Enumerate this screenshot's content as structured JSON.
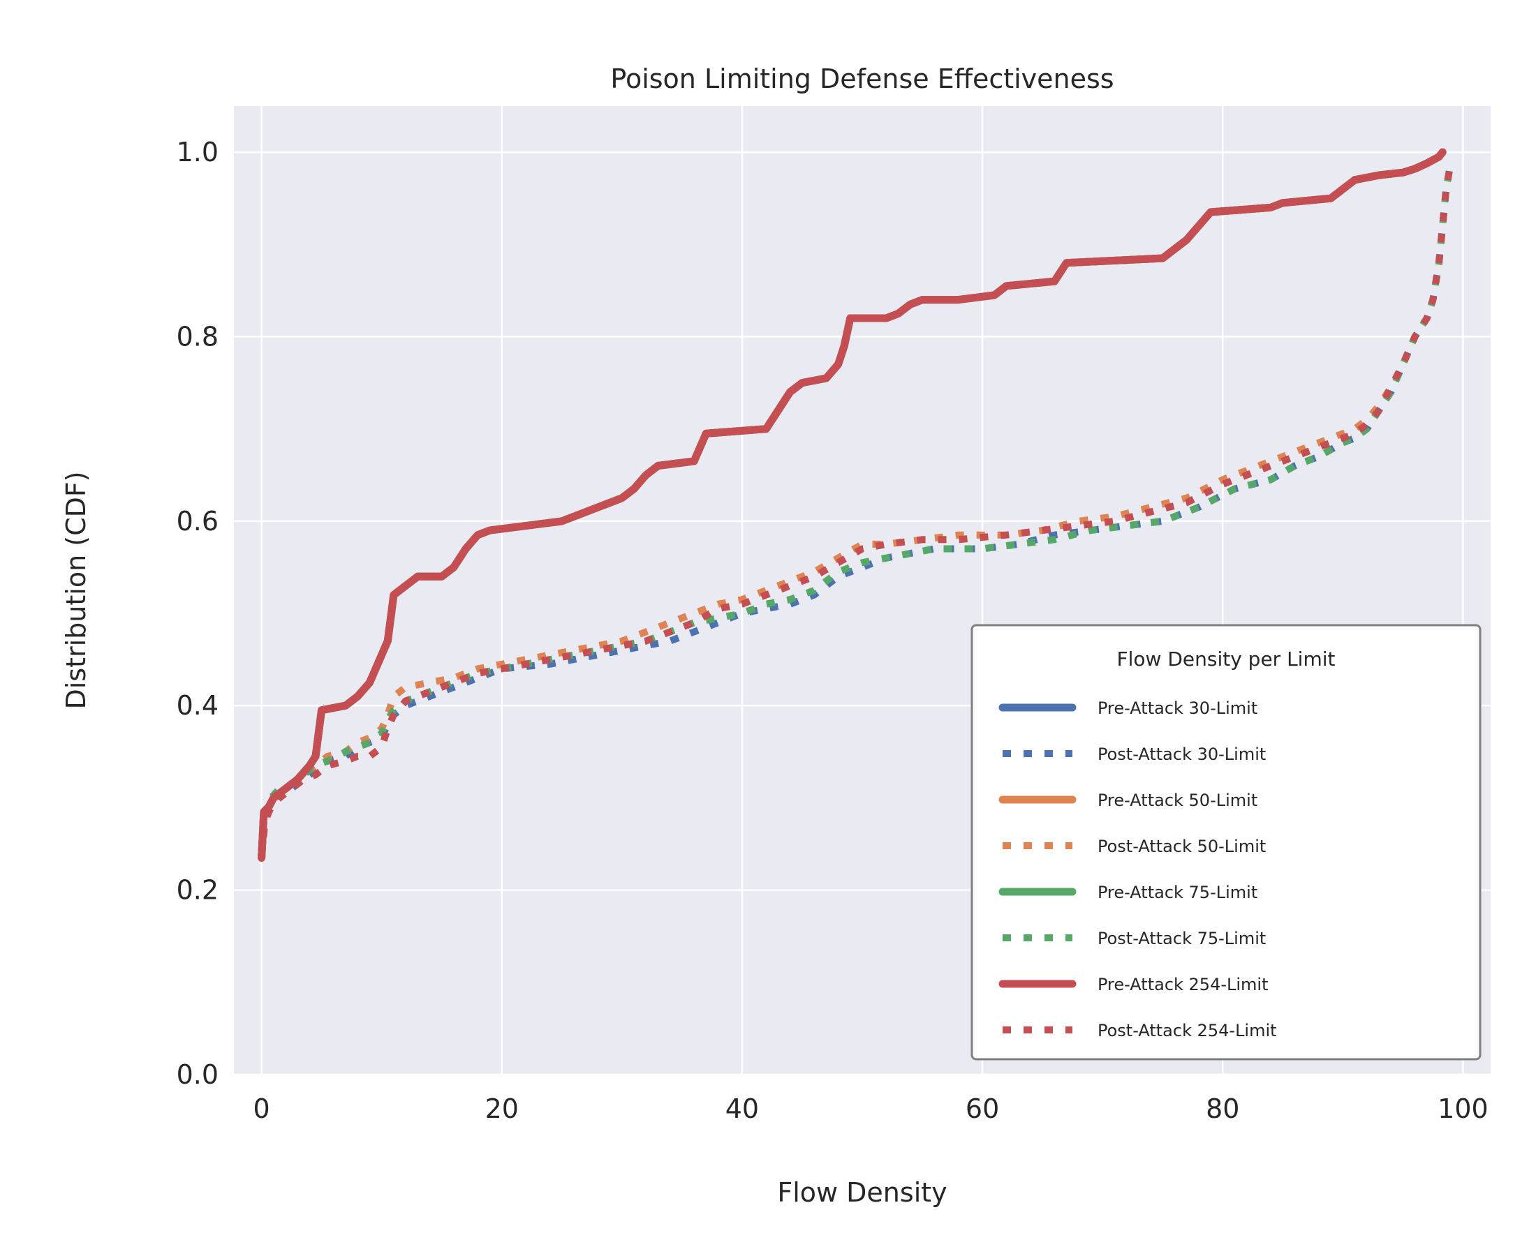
{
  "chart_data": {
    "type": "line",
    "title": "Poison Limiting Defense Effectiveness",
    "xlabel": "Flow Density",
    "ylabel": "Distribution (CDF)",
    "xlim": [
      -2.3,
      102.3
    ],
    "ylim": [
      0,
      1.05
    ],
    "xticks": [
      0,
      20,
      40,
      60,
      80,
      100
    ],
    "yticks": [
      0.0,
      0.2,
      0.4,
      0.6,
      0.8,
      1.0
    ],
    "xtick_labels": [
      "0",
      "20",
      "40",
      "60",
      "80",
      "100"
    ],
    "ytick_labels": [
      "0.0",
      "0.2",
      "0.4",
      "0.6",
      "0.8",
      "1.0"
    ],
    "grid": true,
    "legend": {
      "title": "Flow Density per Limit",
      "position": "lower-right"
    },
    "colors": {
      "blue": "#4c72b0",
      "orange": "#dd8452",
      "green": "#55a868",
      "red": "#c44e52",
      "plot_bg": "#eaeaf2",
      "grid": "#ffffff"
    },
    "series": [
      {
        "name": "Pre-Attack 30-Limit",
        "color": "#4c72b0",
        "style": "solid",
        "x": [
          0,
          0.2,
          0.6,
          1,
          2,
          3,
          4,
          4.5,
          5,
          7,
          8,
          9,
          10,
          10.5,
          11,
          12,
          13,
          15,
          16,
          17,
          18,
          19,
          25,
          27,
          30,
          31,
          32,
          33,
          36,
          37,
          42,
          43,
          44,
          45,
          47,
          48,
          48.5,
          49,
          52,
          53,
          54,
          55,
          58,
          61,
          62,
          66,
          67,
          75,
          76,
          77,
          78,
          79,
          84,
          85,
          89,
          90,
          91,
          93,
          95,
          96,
          97,
          98,
          98.3
        ],
        "y": [
          0.235,
          0.285,
          0.29,
          0.3,
          0.31,
          0.32,
          0.335,
          0.345,
          0.395,
          0.4,
          0.41,
          0.425,
          0.455,
          0.47,
          0.52,
          0.53,
          0.54,
          0.54,
          0.55,
          0.57,
          0.585,
          0.59,
          0.6,
          0.61,
          0.625,
          0.635,
          0.65,
          0.66,
          0.665,
          0.695,
          0.7,
          0.72,
          0.74,
          0.75,
          0.755,
          0.77,
          0.79,
          0.82,
          0.82,
          0.825,
          0.835,
          0.84,
          0.84,
          0.845,
          0.855,
          0.86,
          0.88,
          0.885,
          0.895,
          0.905,
          0.92,
          0.935,
          0.94,
          0.945,
          0.95,
          0.96,
          0.97,
          0.975,
          0.978,
          0.982,
          0.988,
          0.995,
          1.0
        ]
      },
      {
        "name": "Post-Attack 30-Limit",
        "color": "#4c72b0",
        "style": "dotted",
        "x": [
          0,
          0.3,
          0.8,
          1.5,
          2.5,
          3.5,
          4.5,
          5.5,
          7,
          8,
          9,
          10,
          10.5,
          11,
          12,
          14,
          16,
          18,
          20,
          24,
          26,
          28,
          30,
          32,
          34,
          36,
          38,
          40,
          42,
          44,
          46,
          48,
          50,
          52,
          54,
          56,
          60,
          63,
          66,
          69,
          72,
          75,
          78,
          81,
          84,
          86,
          88,
          90,
          91,
          92,
          93,
          94,
          95,
          96,
          97,
          97.5,
          98,
          98.3,
          98.6,
          99
        ],
        "y": [
          0.235,
          0.28,
          0.295,
          0.305,
          0.31,
          0.32,
          0.33,
          0.34,
          0.345,
          0.355,
          0.36,
          0.365,
          0.38,
          0.39,
          0.4,
          0.41,
          0.42,
          0.43,
          0.44,
          0.445,
          0.45,
          0.455,
          0.46,
          0.465,
          0.47,
          0.48,
          0.49,
          0.5,
          0.505,
          0.51,
          0.52,
          0.54,
          0.55,
          0.56,
          0.565,
          0.57,
          0.57,
          0.575,
          0.585,
          0.59,
          0.595,
          0.6,
          0.615,
          0.635,
          0.645,
          0.66,
          0.67,
          0.685,
          0.69,
          0.7,
          0.72,
          0.74,
          0.77,
          0.8,
          0.82,
          0.84,
          0.88,
          0.92,
          0.96,
          0.99
        ]
      },
      {
        "name": "Pre-Attack 50-Limit",
        "color": "#dd8452",
        "style": "solid",
        "x": [
          0,
          0.2,
          0.6,
          1,
          2,
          3,
          4,
          4.5,
          5,
          7,
          8,
          9,
          10,
          10.5,
          11,
          12,
          13,
          15,
          16,
          17,
          18,
          19,
          25,
          27,
          30,
          31,
          32,
          33,
          36,
          37,
          42,
          43,
          44,
          45,
          47,
          48,
          48.5,
          49,
          52,
          53,
          54,
          55,
          58,
          61,
          62,
          66,
          67,
          75,
          76,
          77,
          78,
          79,
          84,
          85,
          89,
          90,
          91,
          93,
          95,
          96,
          97,
          98,
          98.3
        ],
        "y": [
          0.235,
          0.285,
          0.29,
          0.3,
          0.31,
          0.32,
          0.335,
          0.345,
          0.395,
          0.4,
          0.41,
          0.425,
          0.455,
          0.47,
          0.52,
          0.53,
          0.54,
          0.54,
          0.55,
          0.57,
          0.585,
          0.59,
          0.6,
          0.61,
          0.625,
          0.635,
          0.65,
          0.66,
          0.665,
          0.695,
          0.7,
          0.72,
          0.74,
          0.75,
          0.755,
          0.77,
          0.79,
          0.82,
          0.82,
          0.825,
          0.835,
          0.84,
          0.84,
          0.845,
          0.855,
          0.86,
          0.88,
          0.885,
          0.895,
          0.905,
          0.92,
          0.935,
          0.94,
          0.945,
          0.95,
          0.96,
          0.97,
          0.975,
          0.978,
          0.982,
          0.988,
          0.995,
          1.0
        ]
      },
      {
        "name": "Post-Attack 50-Limit",
        "color": "#dd8452",
        "style": "dotted",
        "x": [
          0,
          0.3,
          0.8,
          1.5,
          2.5,
          3.5,
          4.5,
          5.5,
          7,
          8,
          9,
          10,
          10.5,
          11,
          12,
          14,
          16,
          18,
          20,
          22,
          24,
          26,
          28,
          30,
          32,
          34,
          36,
          38,
          40,
          42,
          44,
          46,
          48,
          50,
          52,
          55,
          58,
          62,
          65,
          68,
          71,
          74,
          77,
          80,
          83,
          85,
          87,
          89,
          91,
          92,
          93,
          94,
          95,
          96,
          97,
          97.5,
          98,
          98.3,
          98.6,
          99
        ],
        "y": [
          0.235,
          0.28,
          0.295,
          0.305,
          0.315,
          0.325,
          0.335,
          0.345,
          0.35,
          0.36,
          0.365,
          0.375,
          0.39,
          0.41,
          0.42,
          0.425,
          0.43,
          0.44,
          0.445,
          0.45,
          0.455,
          0.46,
          0.465,
          0.47,
          0.48,
          0.49,
          0.5,
          0.51,
          0.515,
          0.525,
          0.535,
          0.545,
          0.56,
          0.575,
          0.575,
          0.58,
          0.585,
          0.585,
          0.59,
          0.6,
          0.605,
          0.615,
          0.625,
          0.645,
          0.66,
          0.67,
          0.68,
          0.69,
          0.7,
          0.71,
          0.725,
          0.745,
          0.77,
          0.8,
          0.82,
          0.84,
          0.88,
          0.92,
          0.96,
          0.99
        ]
      },
      {
        "name": "Pre-Attack 75-Limit",
        "color": "#55a868",
        "style": "solid",
        "x": [
          0,
          0.2,
          0.6,
          1,
          2,
          3,
          4,
          4.5,
          5,
          7,
          8,
          9,
          10,
          10.5,
          11,
          12,
          13,
          15,
          16,
          17,
          18,
          19,
          25,
          27,
          30,
          31,
          32,
          33,
          36,
          37,
          42,
          43,
          44,
          45,
          47,
          48,
          48.5,
          49,
          52,
          53,
          54,
          55,
          58,
          61,
          62,
          66,
          67,
          75,
          76,
          77,
          78,
          79,
          84,
          85,
          89,
          90,
          91,
          93,
          95,
          96,
          97,
          98,
          98.3
        ],
        "y": [
          0.235,
          0.285,
          0.29,
          0.3,
          0.31,
          0.32,
          0.335,
          0.345,
          0.395,
          0.4,
          0.41,
          0.425,
          0.455,
          0.47,
          0.52,
          0.53,
          0.54,
          0.54,
          0.55,
          0.57,
          0.585,
          0.59,
          0.6,
          0.61,
          0.625,
          0.635,
          0.65,
          0.66,
          0.665,
          0.695,
          0.7,
          0.72,
          0.74,
          0.75,
          0.755,
          0.77,
          0.79,
          0.82,
          0.82,
          0.825,
          0.835,
          0.84,
          0.84,
          0.845,
          0.855,
          0.86,
          0.88,
          0.885,
          0.895,
          0.905,
          0.92,
          0.935,
          0.94,
          0.945,
          0.95,
          0.96,
          0.97,
          0.975,
          0.978,
          0.982,
          0.988,
          0.995,
          1.0
        ]
      },
      {
        "name": "Post-Attack 75-Limit",
        "color": "#55a868",
        "style": "dotted",
        "x": [
          0,
          0.3,
          0.8,
          1.5,
          2.5,
          3.5,
          4.5,
          5.5,
          7,
          8,
          9,
          10,
          10.5,
          11,
          12,
          14,
          16,
          18,
          20,
          24,
          26,
          28,
          30,
          32,
          34,
          36,
          38,
          40,
          42,
          44,
          46,
          48,
          50,
          52,
          54,
          56,
          60,
          63,
          66,
          69,
          72,
          75,
          78,
          81,
          84,
          86,
          88,
          90,
          91,
          92,
          93,
          94,
          95,
          96,
          97,
          97.5,
          98,
          98.3,
          98.6,
          99
        ],
        "y": [
          0.235,
          0.285,
          0.3,
          0.31,
          0.315,
          0.325,
          0.335,
          0.34,
          0.35,
          0.355,
          0.36,
          0.37,
          0.385,
          0.395,
          0.405,
          0.415,
          0.425,
          0.435,
          0.44,
          0.45,
          0.455,
          0.46,
          0.465,
          0.47,
          0.48,
          0.49,
          0.495,
          0.5,
          0.51,
          0.515,
          0.525,
          0.545,
          0.555,
          0.56,
          0.565,
          0.57,
          0.57,
          0.575,
          0.58,
          0.59,
          0.595,
          0.6,
          0.615,
          0.635,
          0.645,
          0.66,
          0.67,
          0.685,
          0.69,
          0.7,
          0.72,
          0.74,
          0.77,
          0.8,
          0.82,
          0.84,
          0.88,
          0.92,
          0.96,
          0.99
        ]
      },
      {
        "name": "Pre-Attack 254-Limit",
        "color": "#c44e52",
        "style": "solid",
        "x": [
          0,
          0.2,
          0.6,
          1,
          2,
          3,
          4,
          4.5,
          5,
          7,
          8,
          9,
          10,
          10.5,
          11,
          12,
          13,
          15,
          16,
          17,
          18,
          19,
          25,
          27,
          30,
          31,
          32,
          33,
          36,
          37,
          42,
          43,
          44,
          45,
          47,
          48,
          48.5,
          49,
          52,
          53,
          54,
          55,
          58,
          61,
          62,
          66,
          67,
          75,
          76,
          77,
          78,
          79,
          84,
          85,
          89,
          90,
          91,
          93,
          95,
          96,
          97,
          98,
          98.3
        ],
        "y": [
          0.235,
          0.285,
          0.29,
          0.3,
          0.31,
          0.32,
          0.335,
          0.345,
          0.395,
          0.4,
          0.41,
          0.425,
          0.455,
          0.47,
          0.52,
          0.53,
          0.54,
          0.54,
          0.55,
          0.57,
          0.585,
          0.59,
          0.6,
          0.61,
          0.625,
          0.635,
          0.65,
          0.66,
          0.665,
          0.695,
          0.7,
          0.72,
          0.74,
          0.75,
          0.755,
          0.77,
          0.79,
          0.82,
          0.82,
          0.825,
          0.835,
          0.84,
          0.84,
          0.845,
          0.855,
          0.86,
          0.88,
          0.885,
          0.895,
          0.905,
          0.92,
          0.935,
          0.94,
          0.945,
          0.95,
          0.96,
          0.97,
          0.975,
          0.978,
          0.982,
          0.988,
          0.995,
          1.0
        ]
      },
      {
        "name": "Post-Attack 254-Limit",
        "color": "#c44e52",
        "style": "dotted",
        "x": [
          0,
          0.3,
          0.8,
          1.5,
          2.5,
          3.5,
          4.5,
          5.5,
          7,
          8,
          9,
          10,
          10.5,
          11,
          12,
          14,
          16,
          18,
          20,
          22,
          24,
          26,
          28,
          30,
          32,
          34,
          36,
          38,
          40,
          42,
          44,
          46,
          48,
          50,
          52,
          55,
          58,
          62,
          65,
          68,
          71,
          74,
          77,
          80,
          83,
          85,
          87,
          89,
          91,
          92,
          93,
          94,
          95,
          96,
          97,
          97.5,
          98,
          98.3,
          98.6,
          99
        ],
        "y": [
          0.235,
          0.275,
          0.29,
          0.3,
          0.31,
          0.32,
          0.325,
          0.335,
          0.34,
          0.345,
          0.345,
          0.355,
          0.375,
          0.39,
          0.405,
          0.415,
          0.425,
          0.435,
          0.44,
          0.445,
          0.45,
          0.455,
          0.46,
          0.465,
          0.47,
          0.48,
          0.49,
          0.505,
          0.51,
          0.52,
          0.53,
          0.54,
          0.555,
          0.57,
          0.575,
          0.58,
          0.58,
          0.585,
          0.59,
          0.595,
          0.6,
          0.61,
          0.62,
          0.64,
          0.655,
          0.665,
          0.675,
          0.685,
          0.695,
          0.705,
          0.72,
          0.745,
          0.77,
          0.8,
          0.82,
          0.84,
          0.88,
          0.92,
          0.96,
          0.99
        ]
      }
    ]
  }
}
